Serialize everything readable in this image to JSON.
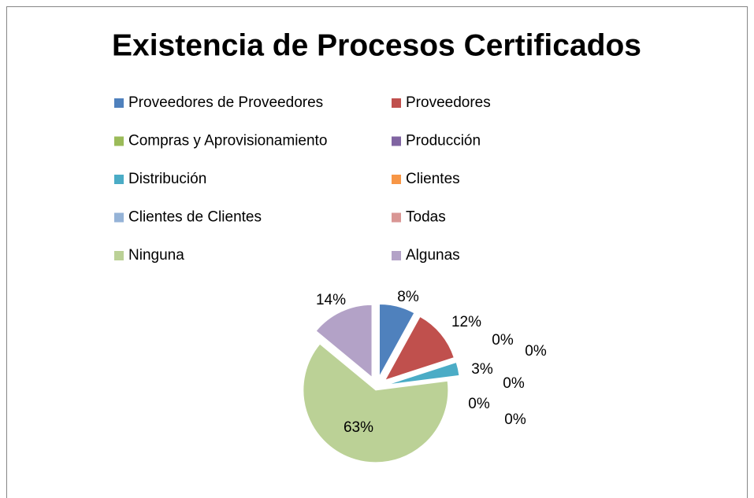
{
  "chart_data": {
    "type": "pie",
    "title": "Existencia de Procesos Certificados",
    "categories": [
      "Proveedores de Proveedores",
      "Proveedores",
      "Compras y Aprovisionamiento",
      "Producción",
      "Distribución",
      "Clientes",
      "Clientes de Clientes",
      "Todas",
      "Ninguna",
      "Algunas"
    ],
    "values": [
      8,
      12,
      0,
      0,
      3,
      0,
      0,
      0,
      63,
      14
    ],
    "value_labels": [
      "8%",
      "12%",
      "0%",
      "0%",
      "3%",
      "0%",
      "0%",
      "0%",
      "63%",
      "14%"
    ],
    "colors": [
      "#4f81bd",
      "#c0504d",
      "#9bbb59",
      "#8064a2",
      "#4bacc6",
      "#f79646",
      "#95b3d7",
      "#d99694",
      "#bbd196",
      "#b3a2c7"
    ],
    "legend": "top"
  }
}
